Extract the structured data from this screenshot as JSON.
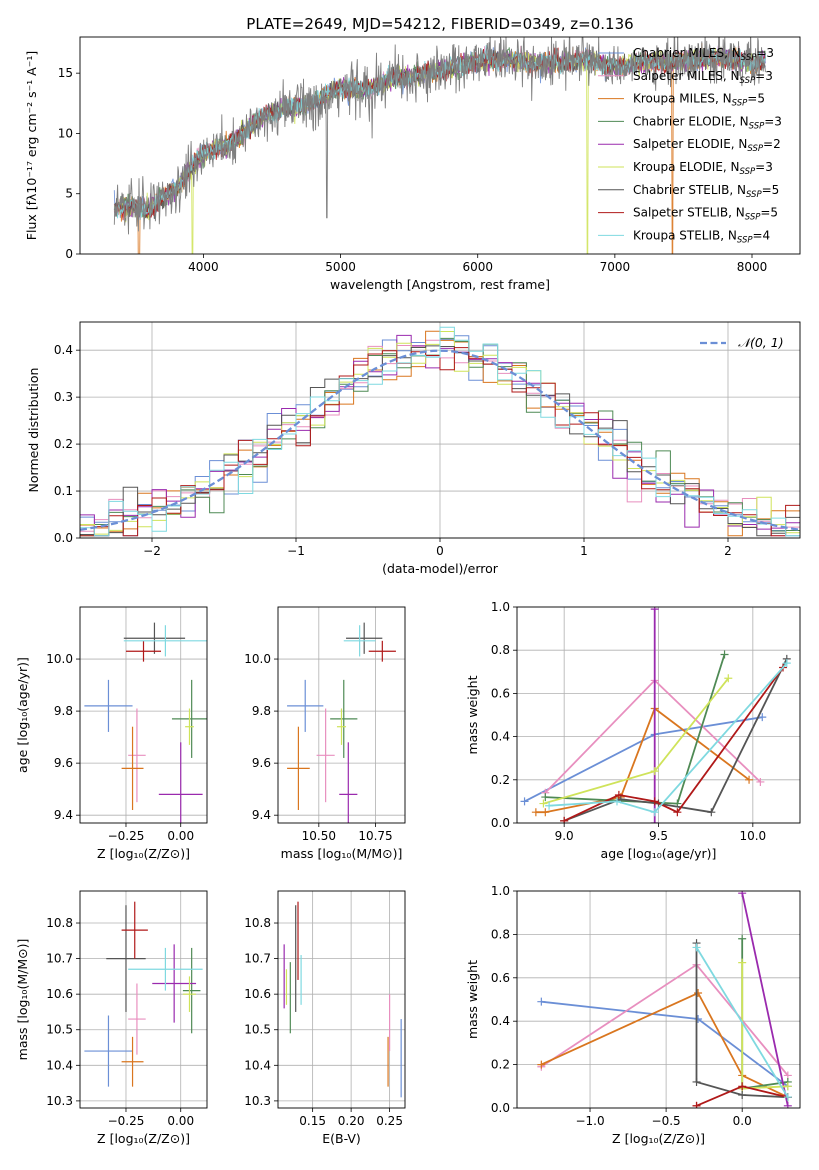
{
  "figure_title": "PLATE=2649, MJD=54212, FIBERID=0349, z=0.136",
  "colors": {
    "Chabrier MILES": "#6b8fd6",
    "Salpeter MILES": "#e88fbf",
    "Kroupa MILES": "#d9761f",
    "Chabrier ELODIE": "#4f8a55",
    "Salpeter ELODIE": "#9a2aae",
    "Kroupa ELODIE": "#cfe35a",
    "Chabrier STELIB": "#555555",
    "Salpeter STELIB": "#b01919",
    "Kroupa STELIB": "#7fd9e0"
  },
  "chart_data": [
    {
      "type": "line",
      "title": "PLATE=2649, MJD=54212, FIBERID=0349, z=0.136",
      "xlabel": "wavelength [Angstrom, rest frame]",
      "ylabel": "Flux [fλ10⁻¹⁷ erg cm⁻² s⁻¹ A⁻¹]",
      "xlim": [
        3100,
        8350
      ],
      "ylim": [
        0,
        18
      ],
      "xticks": [
        "4000",
        "5000",
        "6000",
        "7000",
        "8000"
      ],
      "yticks": [
        "0",
        "5",
        "10",
        "15"
      ],
      "grid": false,
      "legend_position": "right",
      "data_series_note": "observed spectrum (grey) with 9 model fits overlaid",
      "spectrum_x": [
        3350,
        3500,
        3600,
        3700,
        3800,
        3900,
        4000,
        4100,
        4200,
        4300,
        4400,
        4500,
        4600,
        4700,
        4800,
        4900,
        5000,
        5200,
        5400,
        5600,
        5800,
        6000,
        6200,
        6400,
        6600,
        6800,
        7000,
        7200,
        7400,
        7600,
        7800,
        8000,
        8100
      ],
      "spectrum_y": [
        3.8,
        4.0,
        3.6,
        4.6,
        5.4,
        7.0,
        8.3,
        8.9,
        9.1,
        10.1,
        11.2,
        11.7,
        12.2,
        12.2,
        12.6,
        13.2,
        13.8,
        13.7,
        14.6,
        14.9,
        15.4,
        16.0,
        16.2,
        15.8,
        15.9,
        16.1,
        15.5,
        15.9,
        15.9,
        16.1,
        16.3,
        15.8,
        16.2
      ],
      "legend": [
        {
          "name": "Chabrier MILES, N",
          "sub": "SSP",
          "suffix": "=3"
        },
        {
          "name": "Salpeter MILES, N",
          "sub": "SSP",
          "suffix": "=3"
        },
        {
          "name": "Kroupa MILES, N",
          "sub": "SSP",
          "suffix": "=5"
        },
        {
          "name": "Chabrier ELODIE, N",
          "sub": "SSP",
          "suffix": "=3"
        },
        {
          "name": "Salpeter ELODIE, N",
          "sub": "SSP",
          "suffix": "=2"
        },
        {
          "name": "Kroupa ELODIE, N",
          "sub": "SSP",
          "suffix": "=3"
        },
        {
          "name": "Chabrier STELIB, N",
          "sub": "SSP",
          "suffix": "=5"
        },
        {
          "name": "Salpeter STELIB, N",
          "sub": "SSP",
          "suffix": "=5"
        },
        {
          "name": "Kroupa STELIB, N",
          "sub": "SSP",
          "suffix": "=4"
        }
      ]
    },
    {
      "type": "line",
      "xlabel": "(data-model)/error",
      "ylabel": "Normed distribution",
      "xlim": [
        -2.5,
        2.5
      ],
      "ylim": [
        0,
        0.46
      ],
      "xticks": [
        "−2",
        "−1",
        "0",
        "1",
        "2"
      ],
      "yticks": [
        "0.0",
        "0.1",
        "0.2",
        "0.3",
        "0.4"
      ],
      "grid": true,
      "legend_position": "top-right",
      "legend": [
        "𝒩(0, 1)"
      ],
      "histogram_bins": 50,
      "histogram_range": [
        -2.5,
        2.5
      ]
    },
    {
      "type": "scatter",
      "xlabel": "Z [log₁₀(Z/Z⊙)]",
      "ylabel": "age  [log₁₀(age/yr)]",
      "xlim": [
        -0.46,
        0.12
      ],
      "ylim": [
        9.37,
        10.2
      ],
      "xticks": [
        "−0.25",
        "0.00"
      ],
      "yticks": [
        "9.4",
        "9.6",
        "9.8",
        "10.0"
      ],
      "grid": true,
      "points": [
        {
          "model": "Chabrier MILES",
          "x": -0.33,
          "xerr": 0.11,
          "y": 9.82,
          "yerr": 0.1
        },
        {
          "model": "Salpeter MILES",
          "x": -0.2,
          "xerr": 0.04,
          "y": 9.63,
          "yerr": 0.18
        },
        {
          "model": "Kroupa MILES",
          "x": -0.22,
          "xerr": 0.05,
          "y": 9.58,
          "yerr": 0.16
        },
        {
          "model": "Chabrier ELODIE",
          "x": 0.05,
          "xerr": 0.09,
          "y": 9.77,
          "yerr": 0.15
        },
        {
          "model": "Salpeter ELODIE",
          "x": 0.0,
          "xerr": 0.1,
          "y": 9.48,
          "yerr": 0.2
        },
        {
          "model": "Kroupa ELODIE",
          "x": 0.04,
          "xerr": 0.02,
          "y": 9.74,
          "yerr": 0.07
        },
        {
          "model": "Chabrier STELIB",
          "x": -0.12,
          "xerr": 0.14,
          "y": 10.08,
          "yerr": 0.06
        },
        {
          "model": "Salpeter STELIB",
          "x": -0.17,
          "xerr": 0.08,
          "y": 10.03,
          "yerr": 0.04
        },
        {
          "model": "Kroupa STELIB",
          "x": -0.07,
          "xerr": 0.19,
          "y": 10.07,
          "yerr": 0.06
        }
      ]
    },
    {
      "type": "scatter",
      "xlabel": "mass [log₁₀(M/M⊙)]",
      "ylabel": "",
      "xlim": [
        10.32,
        10.88
      ],
      "ylim": [
        9.37,
        10.2
      ],
      "xticks": [
        "10.50",
        "10.75"
      ],
      "yticks": [
        "9.4",
        "9.6",
        "9.8",
        "10.0"
      ],
      "grid": true,
      "points": [
        {
          "model": "Chabrier MILES",
          "x": 10.44,
          "xerr": 0.08,
          "y": 9.82,
          "yerr": 0.1
        },
        {
          "model": "Salpeter MILES",
          "x": 10.53,
          "xerr": 0.04,
          "y": 9.63,
          "yerr": 0.18
        },
        {
          "model": "Kroupa MILES",
          "x": 10.41,
          "xerr": 0.05,
          "y": 9.58,
          "yerr": 0.16
        },
        {
          "model": "Chabrier ELODIE",
          "x": 10.61,
          "xerr": 0.06,
          "y": 9.77,
          "yerr": 0.15
        },
        {
          "model": "Salpeter ELODIE",
          "x": 10.63,
          "xerr": 0.04,
          "y": 9.48,
          "yerr": 0.2
        },
        {
          "model": "Kroupa ELODIE",
          "x": 10.6,
          "xerr": 0.02,
          "y": 9.74,
          "yerr": 0.07
        },
        {
          "model": "Chabrier STELIB",
          "x": 10.7,
          "xerr": 0.08,
          "y": 10.08,
          "yerr": 0.06
        },
        {
          "model": "Salpeter STELIB",
          "x": 10.78,
          "xerr": 0.06,
          "y": 10.03,
          "yerr": 0.04
        },
        {
          "model": "Kroupa STELIB",
          "x": 10.68,
          "xerr": 0.07,
          "y": 10.07,
          "yerr": 0.06
        }
      ]
    },
    {
      "type": "line",
      "xlabel": "age  [log₁₀(age/yr)]",
      "ylabel": "mass weight",
      "xlim": [
        8.75,
        10.25
      ],
      "ylim": [
        0,
        1
      ],
      "xticks": [
        "9.0",
        "9.5",
        "10.0"
      ],
      "yticks": [
        "0.0",
        "0.2",
        "0.4",
        "0.6",
        "0.8",
        "1.0"
      ],
      "grid": true,
      "series": [
        {
          "model": "Chabrier MILES",
          "x": [
            8.79,
            9.48,
            10.05
          ],
          "y": [
            0.1,
            0.41,
            0.49
          ]
        },
        {
          "model": "Salpeter MILES",
          "x": [
            8.9,
            9.48,
            10.04
          ],
          "y": [
            0.14,
            0.66,
            0.19
          ]
        },
        {
          "model": "Kroupa MILES",
          "x": [
            8.85,
            8.9,
            9.3,
            9.48,
            9.98
          ],
          "y": [
            0.05,
            0.05,
            0.12,
            0.53,
            0.2
          ]
        },
        {
          "model": "Chabrier ELODIE",
          "x": [
            8.9,
            9.6,
            9.85
          ],
          "y": [
            0.12,
            0.09,
            0.78
          ]
        },
        {
          "model": "Salpeter ELODIE",
          "x": [
            9.48,
            9.48
          ],
          "y": [
            0.0,
            0.99
          ]
        },
        {
          "model": "Kroupa ELODIE",
          "x": [
            8.89,
            9.48,
            9.87
          ],
          "y": [
            0.09,
            0.24,
            0.67
          ]
        },
        {
          "model": "Chabrier STELIB",
          "x": [
            9.0,
            9.3,
            9.5,
            9.78,
            10.18
          ],
          "y": [
            0.01,
            0.11,
            0.09,
            0.05,
            0.76
          ]
        },
        {
          "model": "Salpeter STELIB",
          "x": [
            9.0,
            9.29,
            9.48,
            9.6,
            10.16
          ],
          "y": [
            0.01,
            0.13,
            0.1,
            0.05,
            0.72
          ]
        },
        {
          "model": "Kroupa STELIB",
          "x": [
            8.92,
            9.28,
            9.48,
            10.18
          ],
          "y": [
            0.08,
            0.1,
            0.05,
            0.74
          ]
        }
      ]
    },
    {
      "type": "scatter",
      "xlabel": "Z [log₁₀(Z/Z⊙)]",
      "ylabel": "mass [log₁₀(M/M⊙)]",
      "xlim": [
        -0.46,
        0.12
      ],
      "ylim": [
        10.28,
        10.89
      ],
      "xticks": [
        "−0.25",
        "0.00"
      ],
      "yticks": [
        "10.3",
        "10.4",
        "10.5",
        "10.6",
        "10.7",
        "10.8"
      ],
      "grid": true,
      "points": [
        {
          "model": "Chabrier MILES",
          "x": -0.33,
          "xerr": 0.11,
          "y": 10.44,
          "yerr": 0.1
        },
        {
          "model": "Salpeter MILES",
          "x": -0.2,
          "xerr": 0.04,
          "y": 10.53,
          "yerr": 0.1
        },
        {
          "model": "Kroupa MILES",
          "x": -0.22,
          "xerr": 0.05,
          "y": 10.41,
          "yerr": 0.07
        },
        {
          "model": "Chabrier ELODIE",
          "x": 0.05,
          "xerr": 0.04,
          "y": 10.61,
          "yerr": 0.12
        },
        {
          "model": "Salpeter ELODIE",
          "x": -0.03,
          "xerr": 0.1,
          "y": 10.63,
          "yerr": 0.11
        },
        {
          "model": "Kroupa ELODIE",
          "x": 0.04,
          "xerr": 0.03,
          "y": 10.6,
          "yerr": 0.05
        },
        {
          "model": "Chabrier STELIB",
          "x": -0.25,
          "xerr": 0.09,
          "y": 10.7,
          "yerr": 0.15
        },
        {
          "model": "Salpeter STELIB",
          "x": -0.21,
          "xerr": 0.06,
          "y": 10.78,
          "yerr": 0.08
        },
        {
          "model": "Kroupa STELIB",
          "x": -0.07,
          "xerr": 0.17,
          "y": 10.67,
          "yerr": 0.06
        }
      ]
    },
    {
      "type": "scatter",
      "xlabel": "E(B-V)",
      "ylabel": "",
      "xlim": [
        0.105,
        0.27
      ],
      "ylim": [
        10.28,
        10.89
      ],
      "xticks": [
        "0.15",
        "0.20",
        "0.25"
      ],
      "yticks": [
        "10.3",
        "10.4",
        "10.5",
        "10.6",
        "10.7",
        "10.8"
      ],
      "grid": true,
      "points": [
        {
          "model": "Chabrier MILES",
          "x": 0.265,
          "y": 10.42,
          "yerr": 0.11
        },
        {
          "model": "Salpeter MILES",
          "x": 0.25,
          "y": 10.52,
          "yerr": 0.08
        },
        {
          "model": "Kroupa MILES",
          "x": 0.248,
          "y": 10.41,
          "yerr": 0.07
        },
        {
          "model": "Chabrier ELODIE",
          "x": 0.121,
          "y": 10.59,
          "yerr": 0.1
        },
        {
          "model": "Salpeter ELODIE",
          "x": 0.113,
          "y": 10.65,
          "yerr": 0.09
        },
        {
          "model": "Kroupa ELODIE",
          "x": 0.116,
          "y": 10.62,
          "yerr": 0.05
        },
        {
          "model": "Chabrier STELIB",
          "x": 0.128,
          "y": 10.7,
          "yerr": 0.15
        },
        {
          "model": "Salpeter STELIB",
          "x": 0.131,
          "y": 10.75,
          "yerr": 0.11
        },
        {
          "model": "Kroupa STELIB",
          "x": 0.135,
          "y": 10.64,
          "yerr": 0.07
        }
      ]
    },
    {
      "type": "line",
      "xlabel": "Z [log₁₀(Z/Z⊙)]",
      "ylabel": "mass weight",
      "xlim": [
        -1.48,
        0.38
      ],
      "ylim": [
        0,
        1
      ],
      "xticks": [
        "−1.0",
        "−0.5",
        "0.0"
      ],
      "yticks": [
        "0.0",
        "0.2",
        "0.4",
        "0.6",
        "0.8",
        "1.0"
      ],
      "grid": true,
      "series": [
        {
          "model": "Chabrier MILES",
          "x": [
            -1.32,
            -0.29,
            0.3
          ],
          "y": [
            0.49,
            0.41,
            0.1
          ]
        },
        {
          "model": "Salpeter MILES",
          "x": [
            -1.32,
            -0.3,
            0.3
          ],
          "y": [
            0.19,
            0.66,
            0.15
          ]
        },
        {
          "model": "Kroupa MILES",
          "x": [
            -1.32,
            -0.29,
            0.0,
            0.3
          ],
          "y": [
            0.2,
            0.53,
            0.15,
            0.05
          ]
        },
        {
          "model": "Chabrier ELODIE",
          "x": [
            0.0,
            0.0,
            0.3
          ],
          "y": [
            0.78,
            0.09,
            0.12
          ]
        },
        {
          "model": "Salpeter ELODIE",
          "x": [
            0.0,
            0.3
          ],
          "y": [
            0.99,
            0.01
          ]
        },
        {
          "model": "Kroupa ELODIE",
          "x": [
            0.0,
            0.0,
            0.3
          ],
          "y": [
            0.67,
            0.09,
            0.1
          ]
        },
        {
          "model": "Chabrier STELIB",
          "x": [
            -0.3,
            -0.3,
            0.0,
            0.3
          ],
          "y": [
            0.76,
            0.12,
            0.06,
            0.05
          ]
        },
        {
          "model": "Salpeter STELIB",
          "x": [
            -0.3,
            -0.3,
            0.0,
            0.3
          ],
          "y": [
            0.01,
            0.01,
            0.1,
            0.05
          ]
        },
        {
          "model": "Kroupa STELIB",
          "x": [
            -0.3,
            0.3
          ],
          "y": [
            0.74,
            0.05
          ]
        }
      ]
    }
  ]
}
